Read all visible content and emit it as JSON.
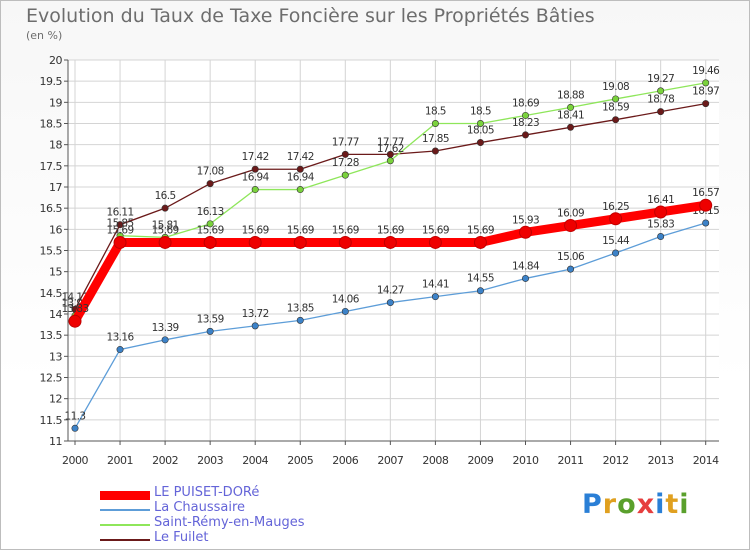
{
  "title": "Evolution du Taux de Taxe Foncière sur les Propriétés Bâties",
  "unit": "(en %)",
  "logo": {
    "text": "Proxiti",
    "letter_colors": [
      "#2a7fd6",
      "#e0a020",
      "#5aa02c",
      "#e63e3e",
      "#2a7fd6",
      "#e0a020",
      "#5aa02c"
    ]
  },
  "chart_data": {
    "type": "line",
    "x": [
      "2000",
      "2001",
      "2002",
      "2003",
      "2004",
      "2005",
      "2006",
      "2007",
      "2008",
      "2009",
      "2010",
      "2011",
      "2012",
      "2013",
      "2014"
    ],
    "ylim": [
      11,
      20
    ],
    "yticks": [
      "11",
      "11.5",
      "12",
      "12.5",
      "13",
      "13.5",
      "14",
      "14.5",
      "15",
      "15.5",
      "16",
      "16.5",
      "17",
      "17.5",
      "18",
      "18.5",
      "19",
      "19.5",
      "20"
    ],
    "grid": true,
    "legend_position": "bottom-left",
    "series": [
      {
        "name": "Le Fuilet",
        "color": "#6b1a1a",
        "marker": "#6b1a1a",
        "values": [
          14.11,
          16.11,
          16.5,
          17.08,
          17.42,
          17.42,
          17.77,
          17.77,
          17.85,
          18.05,
          18.23,
          18.41,
          18.59,
          18.78,
          18.97
        ],
        "labels": [
          "14.11",
          "16.11",
          "16.5",
          "17.08",
          "17.42",
          "17.42",
          "17.77",
          "17.77",
          "17.85",
          "18.05",
          "18.23",
          "18.41",
          "18.59",
          "18.78",
          "18.97"
        ]
      },
      {
        "name": "Saint-Rémy-en-Mauges",
        "color": "#8ee65a",
        "marker": "#7ad23c",
        "values": [
          13.96,
          15.85,
          15.81,
          16.13,
          16.94,
          16.94,
          17.28,
          17.62,
          18.5,
          18.5,
          18.69,
          18.88,
          19.08,
          19.27,
          19.46
        ],
        "labels": [
          "13.96",
          "15.85",
          "15.81",
          "16.13",
          "16.94",
          "16.94",
          "17.28",
          "17.62",
          "18.5",
          "18.5",
          "18.69",
          "18.88",
          "19.08",
          "19.27",
          "19.46"
        ]
      },
      {
        "name": "La Chaussaire",
        "color": "#5d9dd8",
        "marker": "#3c82c8",
        "values": [
          11.3,
          13.16,
          13.39,
          13.59,
          13.72,
          13.85,
          14.06,
          14.27,
          14.41,
          14.55,
          14.84,
          15.06,
          15.44,
          15.83,
          16.15
        ],
        "labels": [
          "11.3",
          "13.16",
          "13.39",
          "13.59",
          "13.72",
          "13.85",
          "14.06",
          "14.27",
          "14.41",
          "14.55",
          "14.84",
          "15.06",
          "15.44",
          "15.83",
          "16.15"
        ]
      },
      {
        "name": "LE PUISET-DORé",
        "color": "#ff0000",
        "marker": "#ee0000",
        "values": [
          13.83,
          15.69,
          15.69,
          15.69,
          15.69,
          15.69,
          15.69,
          15.69,
          15.69,
          15.69,
          15.93,
          16.09,
          16.25,
          16.41,
          16.57
        ],
        "labels": [
          "13.83",
          "15.69",
          "15.69",
          "15.69",
          "15.69",
          "15.69",
          "15.69",
          "15.69",
          "15.69",
          "15.69",
          "15.93",
          "16.09",
          "16.25",
          "16.41",
          "16.57"
        ]
      }
    ],
    "legend": [
      "LE PUISET-DORé",
      "La Chaussaire",
      "Saint-Rémy-en-Mauges",
      "Le Fuilet"
    ]
  }
}
